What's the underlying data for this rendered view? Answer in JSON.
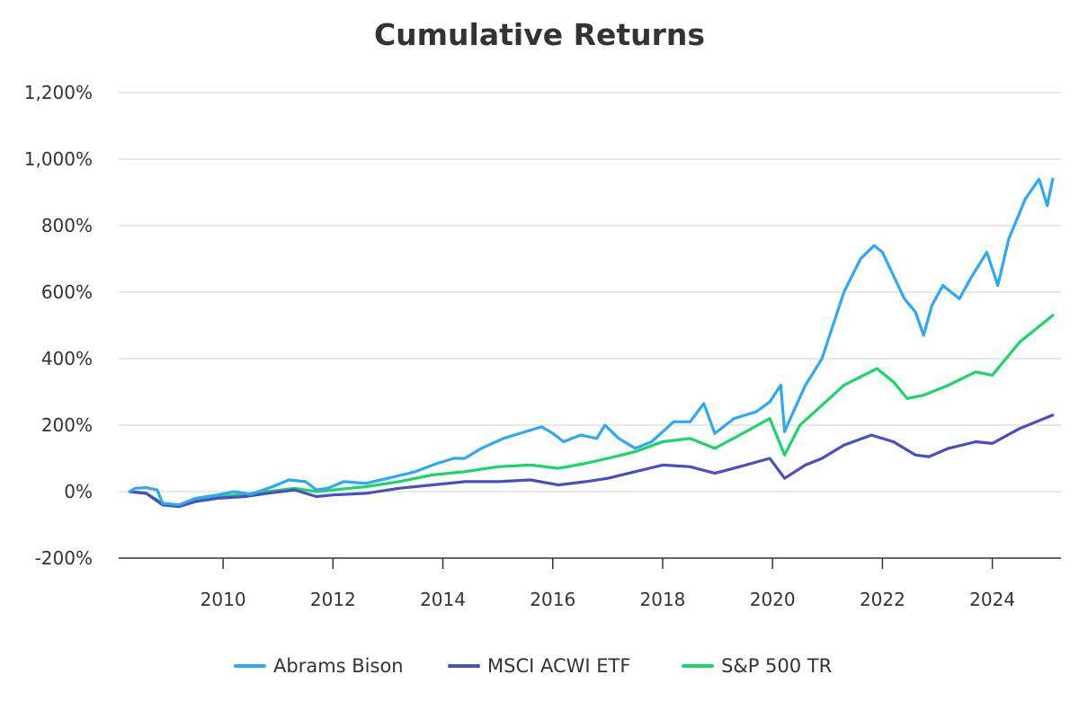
{
  "chart_data": {
    "type": "line",
    "title": "Cumulative Returns",
    "xlabel": "",
    "ylabel": "",
    "xlim": [
      2008.1,
      2025.25
    ],
    "ylim": [
      -200,
      1200
    ],
    "y_ticks": [
      -200,
      0,
      200,
      400,
      600,
      800,
      1000,
      1200
    ],
    "y_tick_labels": [
      "-200%",
      "0%",
      "200%",
      "400%",
      "600%",
      "800%",
      "1,000%",
      "1,200%"
    ],
    "x_ticks": [
      2010,
      2012,
      2014,
      2016,
      2018,
      2020,
      2022,
      2024
    ],
    "x_tick_labels": [
      "2010",
      "2012",
      "2014",
      "2016",
      "2018",
      "2020",
      "2022",
      "2024"
    ],
    "grid": true,
    "legend_position": "bottom",
    "series": [
      {
        "name": "Abrams Bison",
        "color": "#2ea8f5",
        "points": [
          [
            2008.3,
            0
          ],
          [
            2008.4,
            10
          ],
          [
            2008.6,
            12
          ],
          [
            2008.8,
            5
          ],
          [
            2008.9,
            -35
          ],
          [
            2009.2,
            -40
          ],
          [
            2009.5,
            -20
          ],
          [
            2009.9,
            -10
          ],
          [
            2010.2,
            0
          ],
          [
            2010.5,
            -8
          ],
          [
            2010.9,
            15
          ],
          [
            2011.2,
            35
          ],
          [
            2011.5,
            30
          ],
          [
            2011.7,
            5
          ],
          [
            2011.9,
            10
          ],
          [
            2012.2,
            30
          ],
          [
            2012.6,
            25
          ],
          [
            2013.0,
            40
          ],
          [
            2013.5,
            60
          ],
          [
            2013.9,
            85
          ],
          [
            2014.2,
            100
          ],
          [
            2014.4,
            100
          ],
          [
            2014.7,
            130
          ],
          [
            2015.1,
            160
          ],
          [
            2015.5,
            180
          ],
          [
            2015.8,
            195
          ],
          [
            2016.0,
            175
          ],
          [
            2016.2,
            150
          ],
          [
            2016.5,
            170
          ],
          [
            2016.8,
            160
          ],
          [
            2016.95,
            200
          ],
          [
            2017.2,
            160
          ],
          [
            2017.5,
            130
          ],
          [
            2017.8,
            150
          ],
          [
            2018.0,
            180
          ],
          [
            2018.2,
            210
          ],
          [
            2018.5,
            210
          ],
          [
            2018.75,
            265
          ],
          [
            2018.95,
            175
          ],
          [
            2019.3,
            220
          ],
          [
            2019.7,
            240
          ],
          [
            2019.95,
            270
          ],
          [
            2020.15,
            320
          ],
          [
            2020.22,
            180
          ],
          [
            2020.35,
            230
          ],
          [
            2020.6,
            320
          ],
          [
            2020.9,
            400
          ],
          [
            2021.1,
            500
          ],
          [
            2021.3,
            600
          ],
          [
            2021.6,
            700
          ],
          [
            2021.85,
            740
          ],
          [
            2022.0,
            720
          ],
          [
            2022.2,
            650
          ],
          [
            2022.4,
            580
          ],
          [
            2022.6,
            540
          ],
          [
            2022.75,
            470
          ],
          [
            2022.9,
            560
          ],
          [
            2023.1,
            620
          ],
          [
            2023.4,
            580
          ],
          [
            2023.6,
            640
          ],
          [
            2023.9,
            720
          ],
          [
            2024.1,
            620
          ],
          [
            2024.3,
            760
          ],
          [
            2024.6,
            880
          ],
          [
            2024.85,
            940
          ],
          [
            2025.0,
            860
          ],
          [
            2025.1,
            940
          ]
        ]
      },
      {
        "name": "MSCI ACWI ETF",
        "color": "#4b4ec1",
        "points": [
          [
            2008.3,
            0
          ],
          [
            2008.6,
            -5
          ],
          [
            2008.9,
            -40
          ],
          [
            2009.2,
            -45
          ],
          [
            2009.5,
            -30
          ],
          [
            2009.9,
            -20
          ],
          [
            2010.4,
            -15
          ],
          [
            2010.8,
            -5
          ],
          [
            2011.3,
            5
          ],
          [
            2011.7,
            -15
          ],
          [
            2012.0,
            -10
          ],
          [
            2012.6,
            -5
          ],
          [
            2013.2,
            10
          ],
          [
            2013.8,
            20
          ],
          [
            2014.4,
            30
          ],
          [
            2015.0,
            30
          ],
          [
            2015.6,
            35
          ],
          [
            2016.1,
            20
          ],
          [
            2016.6,
            30
          ],
          [
            2017.0,
            40
          ],
          [
            2017.5,
            60
          ],
          [
            2018.0,
            80
          ],
          [
            2018.5,
            75
          ],
          [
            2018.95,
            55
          ],
          [
            2019.4,
            75
          ],
          [
            2019.95,
            100
          ],
          [
            2020.22,
            40
          ],
          [
            2020.6,
            80
          ],
          [
            2020.9,
            100
          ],
          [
            2021.3,
            140
          ],
          [
            2021.8,
            170
          ],
          [
            2022.2,
            150
          ],
          [
            2022.6,
            110
          ],
          [
            2022.85,
            105
          ],
          [
            2023.2,
            130
          ],
          [
            2023.7,
            150
          ],
          [
            2024.0,
            145
          ],
          [
            2024.5,
            190
          ],
          [
            2025.1,
            230
          ]
        ]
      },
      {
        "name": "S&P 500 TR",
        "color": "#19d56a",
        "points": [
          [
            2008.3,
            0
          ],
          [
            2008.6,
            -5
          ],
          [
            2008.9,
            -35
          ],
          [
            2009.2,
            -40
          ],
          [
            2009.5,
            -25
          ],
          [
            2009.9,
            -15
          ],
          [
            2010.4,
            -8
          ],
          [
            2010.8,
            0
          ],
          [
            2011.3,
            10
          ],
          [
            2011.7,
            0
          ],
          [
            2012.0,
            5
          ],
          [
            2012.6,
            15
          ],
          [
            2013.2,
            30
          ],
          [
            2013.8,
            50
          ],
          [
            2014.4,
            60
          ],
          [
            2015.0,
            75
          ],
          [
            2015.6,
            80
          ],
          [
            2016.1,
            70
          ],
          [
            2016.6,
            85
          ],
          [
            2017.0,
            100
          ],
          [
            2017.5,
            120
          ],
          [
            2018.0,
            150
          ],
          [
            2018.5,
            160
          ],
          [
            2018.95,
            130
          ],
          [
            2019.4,
            170
          ],
          [
            2019.95,
            220
          ],
          [
            2020.22,
            110
          ],
          [
            2020.5,
            200
          ],
          [
            2020.9,
            260
          ],
          [
            2021.3,
            320
          ],
          [
            2021.9,
            370
          ],
          [
            2022.2,
            330
          ],
          [
            2022.45,
            280
          ],
          [
            2022.75,
            290
          ],
          [
            2023.2,
            320
          ],
          [
            2023.7,
            360
          ],
          [
            2024.0,
            350
          ],
          [
            2024.5,
            450
          ],
          [
            2025.1,
            530
          ]
        ]
      }
    ]
  }
}
